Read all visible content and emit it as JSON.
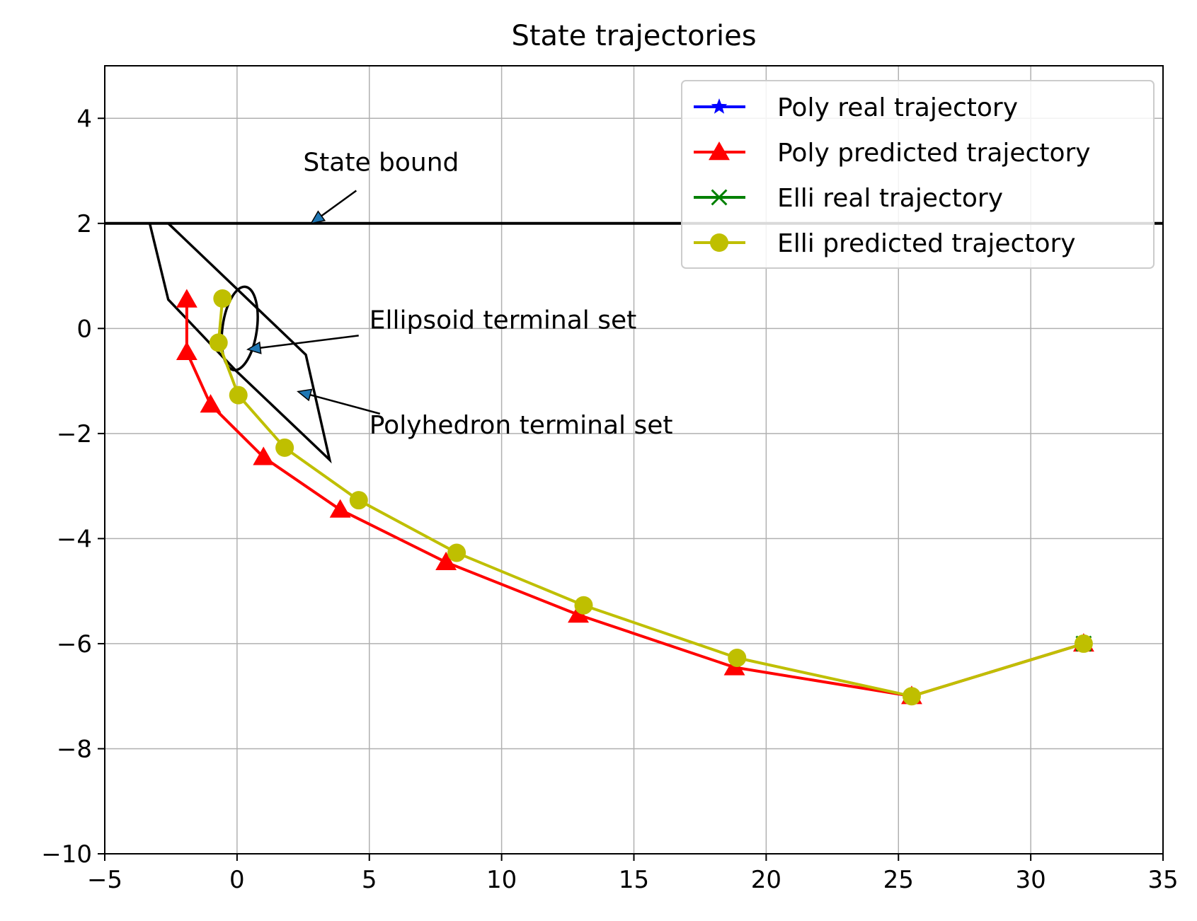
{
  "chart_data": {
    "type": "line",
    "title": "State trajectories",
    "xlabel": "",
    "ylabel": "",
    "xlim": [
      -5,
      35
    ],
    "ylim": [
      -10,
      5
    ],
    "grid": true,
    "x_ticks": [
      -5,
      0,
      5,
      10,
      15,
      20,
      25,
      30,
      35
    ],
    "y_ticks": [
      4,
      2,
      0,
      -2,
      -4,
      -6,
      -8,
      -10
    ],
    "x_tick_labels": [
      "−5",
      "0",
      "5",
      "10",
      "15",
      "20",
      "25",
      "30",
      "35"
    ],
    "y_tick_labels": [
      "4",
      "2",
      "0",
      "−2",
      "−4",
      "−6",
      "−8",
      "−10"
    ],
    "legend_position": "upper right",
    "series": [
      {
        "name": "Poly real trajectory",
        "color": "#0000ff",
        "marker": "star",
        "x": [
          32.0
        ],
        "y": [
          -6.0
        ]
      },
      {
        "name": "Poly predicted trajectory",
        "color": "#ff0000",
        "marker": "triangle",
        "x": [
          32.0,
          25.5,
          18.8,
          12.9,
          7.9,
          3.9,
          1.0,
          -1.0,
          -1.9,
          -1.9
        ],
        "y": [
          -6.0,
          -7.0,
          -6.45,
          -5.45,
          -4.45,
          -3.45,
          -2.45,
          -1.45,
          -0.45,
          0.55
        ]
      },
      {
        "name": "Elli real trajectory",
        "color": "#008000",
        "marker": "x",
        "x": [
          32.0
        ],
        "y": [
          -6.0
        ]
      },
      {
        "name": "Elli predicted trajectory",
        "color": "#bfbf00",
        "marker": "circle",
        "x": [
          32.0,
          25.5,
          18.9,
          13.1,
          8.3,
          4.6,
          1.8,
          0.05,
          -0.7,
          -0.55
        ],
        "y": [
          -6.0,
          -7.0,
          -6.27,
          -5.27,
          -4.27,
          -3.27,
          -2.27,
          -1.27,
          -0.27,
          0.57
        ]
      }
    ],
    "state_bound": {
      "y": 2
    },
    "polyhedron": {
      "x": [
        -3.3,
        -2.6,
        2.6,
        3.5,
        -0.05,
        -2.6,
        -3.3
      ],
      "y": [
        2.0,
        2.0,
        -0.5,
        -2.5,
        -0.8,
        0.55,
        2.0
      ]
    },
    "ellipsoid": {
      "cx": 0.1,
      "cy": 0.0,
      "rx": 0.65,
      "ry": 0.8
    },
    "annotations": [
      {
        "text": "State bound",
        "text_x": 2.5,
        "text_y": 3.0,
        "arrow_x": 2.8,
        "arrow_y": 2.0
      },
      {
        "text": "Ellipsoid terminal set",
        "text_x": 5.0,
        "text_y": 0.0,
        "arrow_x": 0.4,
        "arrow_y": -0.4
      },
      {
        "text": "Polyhedron terminal set",
        "text_x": 5.0,
        "text_y": -2.0,
        "arrow_x": 2.3,
        "arrow_y": -1.2
      }
    ]
  }
}
